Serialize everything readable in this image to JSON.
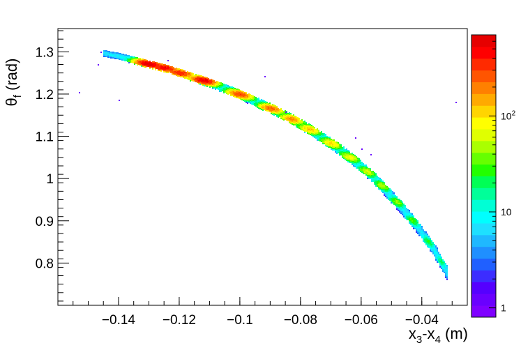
{
  "chart_data": {
    "type": "heatmap",
    "title": "",
    "xlabel": {
      "base": "x",
      "sub1": "3",
      "mid": "-x",
      "sub2": "4",
      "unit": " (m)"
    },
    "ylabel": {
      "base": "θ",
      "sub": "f",
      "unit": " (rad)"
    },
    "xlim": [
      -0.16,
      -0.025
    ],
    "ylim": [
      0.7,
      1.355
    ],
    "x_ticks": [
      -0.14,
      -0.12,
      -0.1,
      -0.08,
      -0.06,
      -0.04
    ],
    "x_tick_labels": [
      "−0.14",
      "−0.12",
      "−0.1",
      "−0.08",
      "−0.06",
      "−0.04"
    ],
    "y_ticks": [
      0.8,
      0.9,
      1.0,
      1.1,
      1.2,
      1.3
    ],
    "y_tick_labels": [
      "0.8",
      "0.9",
      "1",
      "1.1",
      "1.2",
      "1.3"
    ],
    "colorbar": {
      "scale": "log",
      "range": [
        0.8,
        700
      ],
      "ticks": [
        1,
        10,
        100
      ],
      "tick_labels": [
        {
          "base": "1",
          "exp": ""
        },
        {
          "base": "10",
          "exp": ""
        },
        {
          "base": "10",
          "exp": "2"
        }
      ],
      "colors": [
        "#7f00ff",
        "#6a00ff",
        "#5500ff",
        "#3c2dff",
        "#2060ff",
        "#1f8fff",
        "#1fb8ff",
        "#1ee0ff",
        "#00ffff",
        "#00ffd5",
        "#00ff99",
        "#00ff55",
        "#22ff00",
        "#66ff00",
        "#aaff00",
        "#e0ff00",
        "#ffff00",
        "#ffd500",
        "#ffaa00",
        "#ff8000",
        "#ff5500",
        "#ff2a00",
        "#ff0000",
        "#e60000"
      ]
    },
    "band_points": [
      [
        -0.145,
        1.298
      ],
      [
        -0.14,
        1.291
      ],
      [
        -0.135,
        1.282
      ],
      [
        -0.13,
        1.272
      ],
      [
        -0.125,
        1.263
      ],
      [
        -0.12,
        1.252
      ],
      [
        -0.115,
        1.24
      ],
      [
        -0.11,
        1.228
      ],
      [
        -0.105,
        1.214
      ],
      [
        -0.1,
        1.2
      ],
      [
        -0.095,
        1.184
      ],
      [
        -0.09,
        1.168
      ],
      [
        -0.085,
        1.15
      ],
      [
        -0.08,
        1.13
      ],
      [
        -0.075,
        1.108
      ],
      [
        -0.07,
        1.085
      ],
      [
        -0.065,
        1.058
      ],
      [
        -0.06,
        1.03
      ],
      [
        -0.055,
        0.997
      ],
      [
        -0.05,
        0.958
      ],
      [
        -0.045,
        0.918
      ],
      [
        -0.04,
        0.872
      ],
      [
        -0.035,
        0.82
      ],
      [
        -0.032,
        0.78
      ]
    ],
    "hotspots": [
      {
        "x": -0.13,
        "y": 1.273,
        "counts": 650
      },
      {
        "x": -0.125,
        "y": 1.264,
        "counts": 500
      },
      {
        "x": -0.12,
        "y": 1.251,
        "counts": 380
      },
      {
        "x": -0.112,
        "y": 1.234,
        "counts": 520
      },
      {
        "x": -0.1,
        "y": 1.201,
        "counts": 280
      },
      {
        "x": -0.09,
        "y": 1.167,
        "counts": 220
      },
      {
        "x": -0.083,
        "y": 1.142,
        "counts": 170
      },
      {
        "x": -0.077,
        "y": 1.118,
        "counts": 120
      },
      {
        "x": -0.07,
        "y": 1.085,
        "counts": 100
      },
      {
        "x": -0.064,
        "y": 1.052,
        "counts": 75
      },
      {
        "x": -0.058,
        "y": 1.018,
        "counts": 55
      },
      {
        "x": -0.053,
        "y": 0.985,
        "counts": 45
      },
      {
        "x": -0.048,
        "y": 0.946,
        "counts": 35
      },
      {
        "x": -0.043,
        "y": 0.902,
        "counts": 25
      },
      {
        "x": -0.038,
        "y": 0.852,
        "counts": 18
      },
      {
        "x": -0.034,
        "y": 0.805,
        "counts": 12
      }
    ],
    "outliers": [
      [
        -0.153,
        1.205
      ],
      [
        -0.147,
        1.271
      ],
      [
        -0.146,
        1.3
      ],
      [
        -0.14,
        1.186
      ],
      [
        -0.124,
        1.281
      ],
      [
        -0.092,
        1.242
      ],
      [
        -0.085,
        1.158
      ],
      [
        -0.062,
        1.097
      ],
      [
        -0.06,
        1.072
      ],
      [
        -0.057,
        1.058
      ],
      [
        -0.029,
        1.182
      ]
    ]
  }
}
